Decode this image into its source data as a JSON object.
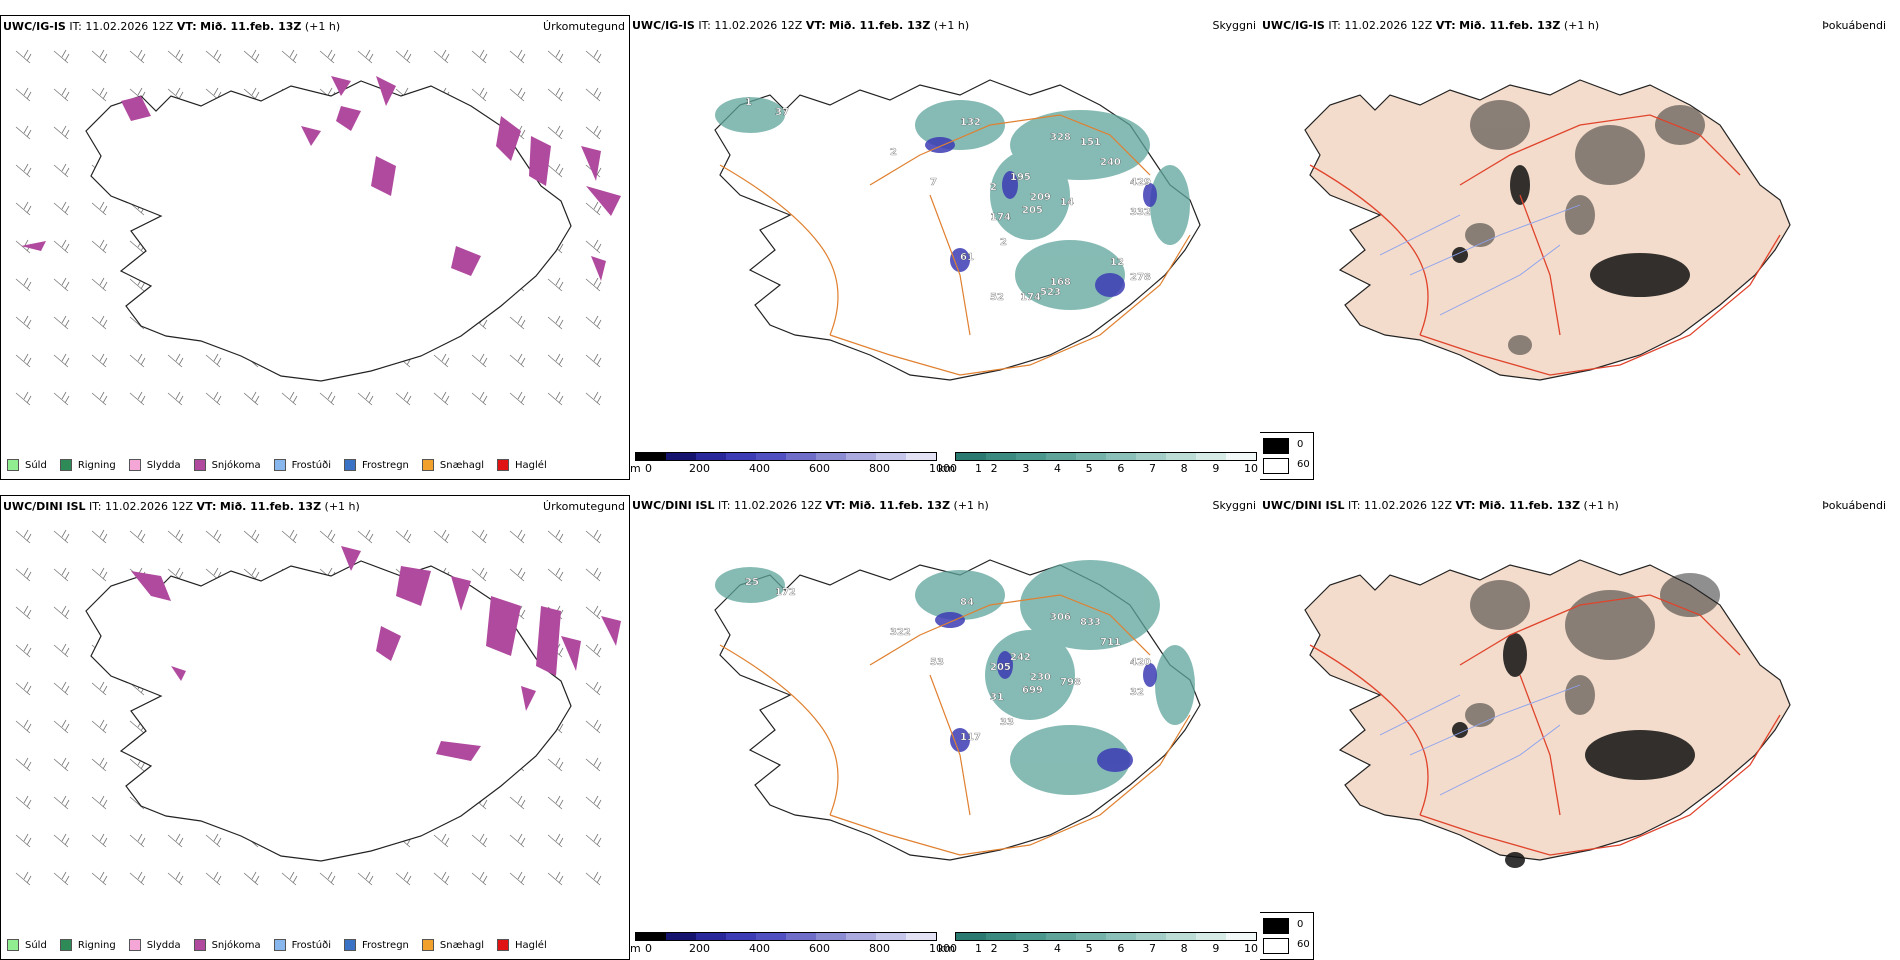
{
  "rows": [
    {
      "model": "UWC/IG-IS",
      "it_label": "IT:",
      "it_value": "11.02.2026 12Z",
      "vt_label": "VT:",
      "vt_value": "Mið. 11.feb. 13Z",
      "lead": "(+1 h)",
      "labels_sky": [
        "1",
        "37",
        "2",
        "132",
        "328",
        "151",
        "240",
        "7",
        "2",
        "195",
        "209",
        "429",
        "205",
        "14",
        "174",
        "332",
        "2",
        "61",
        "12",
        "168",
        "278",
        "174",
        "52",
        "523"
      ]
    },
    {
      "model": "UWC/DINI ISL",
      "it_label": "IT:",
      "it_value": "11.02.2026 12Z",
      "vt_label": "VT:",
      "vt_value": "Mið. 11.feb. 13Z",
      "lead": "(+1 h)",
      "labels_sky": [
        "25",
        "172",
        "322",
        "84",
        "306",
        "833",
        "711",
        "53",
        "205",
        "242",
        "230",
        "420",
        "699",
        "798",
        "31",
        "32",
        "33",
        "117"
      ]
    }
  ],
  "panels": {
    "precip_type_title": "Úrkomutegund",
    "cloud_title": "Skyggni",
    "fog_title": "Þokuábendi"
  },
  "precip_legend": [
    {
      "label": "Súld",
      "color": "#90ee90"
    },
    {
      "label": "Rigning",
      "color": "#2e8b57"
    },
    {
      "label": "Slydda",
      "color": "#f4a6d7"
    },
    {
      "label": "Snjókoma",
      "color": "#b04a9e"
    },
    {
      "label": "Frostúði",
      "color": "#87b7ec"
    },
    {
      "label": "Frostregn",
      "color": "#3a72c6"
    },
    {
      "label": "Snæhagl",
      "color": "#f0a02b"
    },
    {
      "label": "Haglél",
      "color": "#e01414"
    }
  ],
  "cloud_base_scale": {
    "unit": "m",
    "ticks": [
      "0",
      "200",
      "400",
      "600",
      "800",
      "1000"
    ],
    "colors": [
      "#000000",
      "#14146e",
      "#28289a",
      "#3c3cb4",
      "#5050c0",
      "#6e6ec8",
      "#8c8cd2",
      "#aaaade",
      "#c6c6ea",
      "#e2e2f4"
    ]
  },
  "visibility_scale": {
    "unit": "km",
    "ticks": [
      "1",
      "2",
      "3",
      "4",
      "5",
      "6",
      "7",
      "8",
      "9",
      "10"
    ],
    "colors": [
      "#2a7a72",
      "#3a8a80",
      "#4a978e",
      "#5ea49b",
      "#74b2aa",
      "#8ac0b8",
      "#a2cec7",
      "#bcdcd6",
      "#d6eae6",
      "#f2f8f7"
    ]
  },
  "fog_scale": {
    "ticks": [
      "0",
      "60"
    ],
    "colors": [
      "#000000",
      "#ffffff"
    ]
  }
}
